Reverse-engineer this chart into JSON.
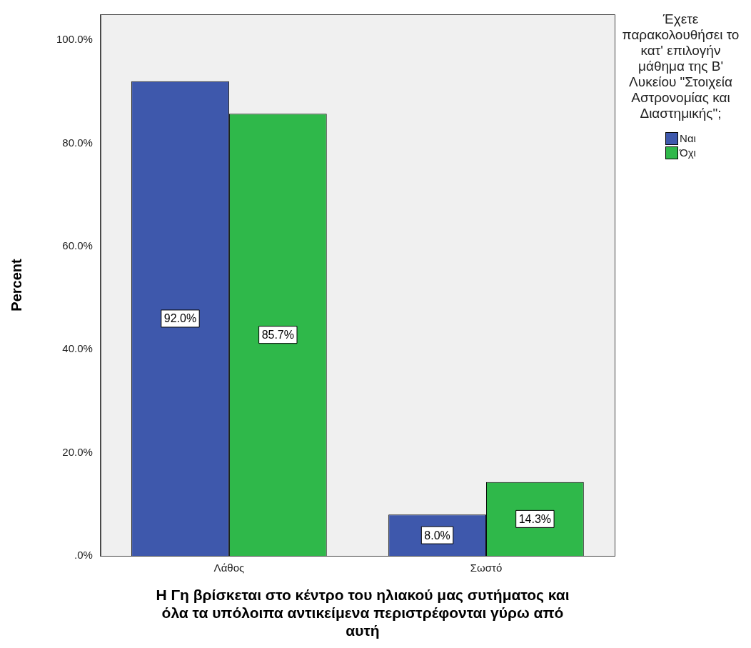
{
  "chart_data": {
    "type": "bar",
    "xlabel": "Η Γη βρίσκεται στο κέντρο του ηλιακού μας συτήματος και όλα τα υπόλοιπα αντικείμενα περιστρέφονται γύρω από αυτή",
    "ylabel": "Percent",
    "legend_title": "Έχετε παρακολουθήσει το κατ' επιλογήν μάθημα της Β' Λυκείου \"Στοιχεία Αστρονομίας και Διαστημικής\";",
    "categories": [
      "Λάθος",
      "Σωστό"
    ],
    "series": [
      {
        "name": "Ναι",
        "color": "#3e58ac",
        "values": [
          92.0,
          8.0
        ],
        "value_labels": [
          "92.0%",
          "8.0%"
        ]
      },
      {
        "name": "Όχι",
        "color": "#2fb84a",
        "values": [
          85.7,
          14.3
        ],
        "value_labels": [
          "85.7%",
          "14.3%"
        ]
      }
    ],
    "ylim": [
      0,
      105
    ],
    "yticks": [
      {
        "value": 0,
        "label": ".0%"
      },
      {
        "value": 20,
        "label": "20.0%"
      },
      {
        "value": 40,
        "label": "40.0%"
      },
      {
        "value": 60,
        "label": "60.0%"
      },
      {
        "value": 80,
        "label": "80.0%"
      },
      {
        "value": 100,
        "label": "100.0%"
      }
    ],
    "grid": false,
    "legend": "right"
  }
}
